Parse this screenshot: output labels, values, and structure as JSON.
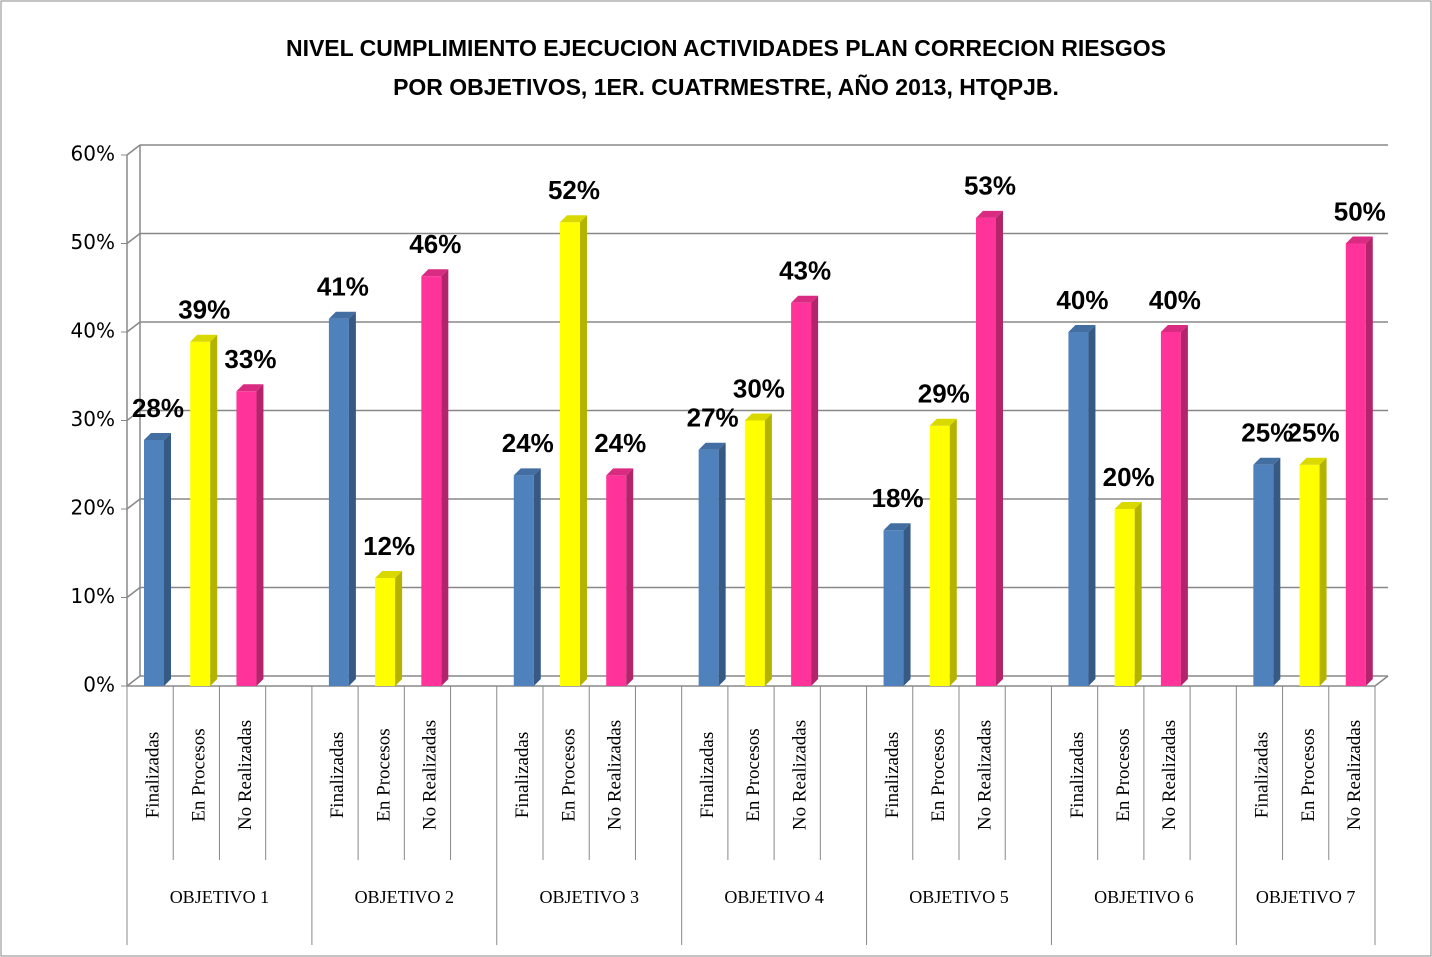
{
  "chart_data": {
    "type": "bar",
    "title": [
      "NIVEL CUMPLIMIENTO EJECUCION ACTIVIDADES PLAN CORRECION RIESGOS",
      "POR OBJETIVOS, 1ER. CUATRMESTRE, AÑO 2013, HTQPJB."
    ],
    "categories": [
      "OBJETIVO 1",
      "OBJETIVO 2",
      "OBJETIVO 3",
      "OBJETIVO 4",
      "OBJETIVO 5",
      "OBJETIVO 6",
      "OBJETIVO 7"
    ],
    "series": [
      {
        "name": "Finalizadas",
        "color": "#4f81bd",
        "values": [
          27.8,
          41.5,
          23.8,
          26.7,
          17.6,
          40,
          25
        ],
        "value_labels": [
          "28%",
          "41%",
          "24%",
          "27%",
          "18%",
          "40%",
          "25%"
        ]
      },
      {
        "name": "En Procesos",
        "color": "#ffff00",
        "values": [
          38.9,
          12.2,
          52.4,
          30,
          29.4,
          20,
          25
        ],
        "value_labels": [
          "39%",
          "12%",
          "52%",
          "30%",
          "29%",
          "20%",
          "25%"
        ]
      },
      {
        "name": "No Realizadas",
        "color": "#ff3399",
        "values": [
          33.3,
          46.3,
          23.8,
          43.3,
          52.9,
          40,
          50
        ],
        "value_labels": [
          "33%",
          "46%",
          "24%",
          "43%",
          "53%",
          "40%",
          "50%"
        ]
      }
    ],
    "ylim": [
      0,
      60
    ],
    "yticks": [
      {
        "value": 0,
        "label": "0%"
      },
      {
        "value": 10,
        "label": "10%"
      },
      {
        "value": 20,
        "label": "20%"
      },
      {
        "value": 30,
        "label": "30%"
      },
      {
        "value": 40,
        "label": "40%"
      },
      {
        "value": 50,
        "label": "50%"
      },
      {
        "value": 60,
        "label": "60%"
      }
    ],
    "grid": true
  }
}
